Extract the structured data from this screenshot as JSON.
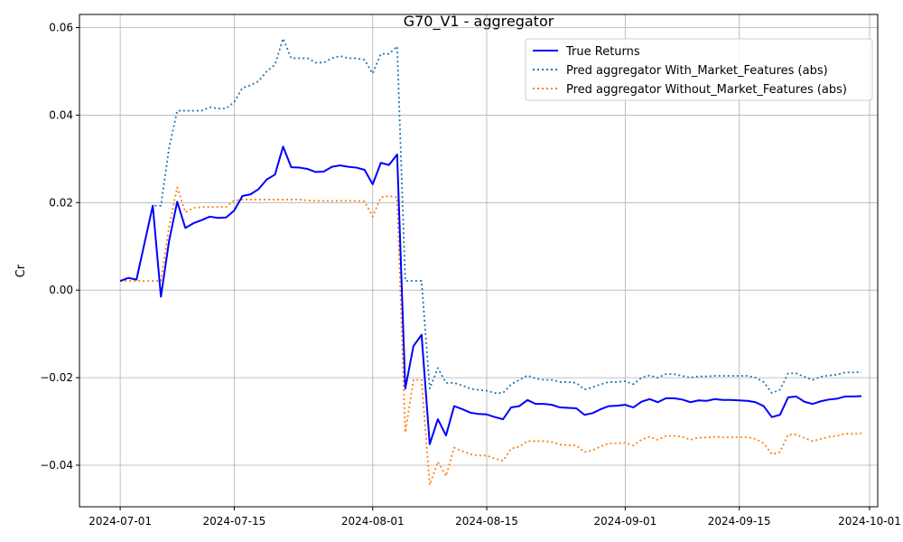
{
  "chart_data": {
    "type": "line",
    "title": "G70_V1 - aggregator",
    "xlabel": "",
    "ylabel": "Cr",
    "xlim": [
      "2024-06-26",
      "2024-10-02"
    ],
    "ylim": [
      -0.0495,
      0.063
    ],
    "grid": true,
    "legend_position": "top-right",
    "x_ticks": [
      "2024-07-01",
      "2024-07-15",
      "2024-08-01",
      "2024-08-15",
      "2024-09-01",
      "2024-09-15",
      "2024-10-01"
    ],
    "y_ticks": [
      -0.04,
      -0.02,
      0.0,
      0.02,
      0.04,
      0.06
    ],
    "y_tick_labels": [
      "−0.04",
      "−0.02",
      "0.00",
      "0.02",
      "0.04",
      "0.06"
    ],
    "x": [
      "2024-07-01",
      "2024-07-02",
      "2024-07-03",
      "2024-07-05",
      "2024-07-06",
      "2024-07-07",
      "2024-07-08",
      "2024-07-09",
      "2024-07-10",
      "2024-07-11",
      "2024-07-12",
      "2024-07-13",
      "2024-07-14",
      "2024-07-15",
      "2024-07-16",
      "2024-07-17",
      "2024-07-18",
      "2024-07-19",
      "2024-07-20",
      "2024-07-21",
      "2024-07-22",
      "2024-07-23",
      "2024-07-24",
      "2024-07-25",
      "2024-07-26",
      "2024-07-27",
      "2024-07-28",
      "2024-07-29",
      "2024-07-30",
      "2024-07-31",
      "2024-08-01",
      "2024-08-02",
      "2024-08-03",
      "2024-08-04",
      "2024-08-05",
      "2024-08-06",
      "2024-08-07",
      "2024-08-08",
      "2024-08-09",
      "2024-08-10",
      "2024-08-11",
      "2024-08-12",
      "2024-08-13",
      "2024-08-14",
      "2024-08-15",
      "2024-08-16",
      "2024-08-17",
      "2024-08-18",
      "2024-08-19",
      "2024-08-20",
      "2024-08-21",
      "2024-08-22",
      "2024-08-23",
      "2024-08-24",
      "2024-08-25",
      "2024-08-26",
      "2024-08-27",
      "2024-08-28",
      "2024-08-29",
      "2024-08-30",
      "2024-08-31",
      "2024-09-01",
      "2024-09-02",
      "2024-09-03",
      "2024-09-04",
      "2024-09-05",
      "2024-09-06",
      "2024-09-07",
      "2024-09-08",
      "2024-09-09",
      "2024-09-10",
      "2024-09-11",
      "2024-09-12",
      "2024-09-13",
      "2024-09-14",
      "2024-09-15",
      "2024-09-16",
      "2024-09-17",
      "2024-09-18",
      "2024-09-19",
      "2024-09-20",
      "2024-09-21",
      "2024-09-22",
      "2024-09-23",
      "2024-09-24",
      "2024-09-25",
      "2024-09-26",
      "2024-09-27",
      "2024-09-28",
      "2024-09-29",
      "2024-09-30"
    ],
    "series": [
      {
        "name": "True Returns",
        "color": "#0000ff",
        "style": "solid",
        "values": [
          0.0021,
          0.0028,
          0.0024,
          0.0193,
          -0.0015,
          0.0112,
          0.0202,
          0.0142,
          0.0153,
          0.016,
          0.0168,
          0.0165,
          0.0166,
          0.0182,
          0.0215,
          0.0219,
          0.0231,
          0.0253,
          0.0264,
          0.0328,
          0.0281,
          0.028,
          0.0277,
          0.027,
          0.0271,
          0.0282,
          0.0285,
          0.0282,
          0.028,
          0.0275,
          0.0242,
          0.0291,
          0.0286,
          0.031,
          -0.0225,
          -0.0128,
          -0.0102,
          -0.0352,
          -0.0295,
          -0.0332,
          -0.0265,
          -0.0272,
          -0.028,
          -0.0283,
          -0.0284,
          -0.029,
          -0.0295,
          -0.0268,
          -0.0265,
          -0.0251,
          -0.026,
          -0.026,
          -0.0262,
          -0.0268,
          -0.0269,
          -0.027,
          -0.0285,
          -0.0281,
          -0.0272,
          -0.0265,
          -0.0264,
          -0.0262,
          -0.0268,
          -0.0255,
          -0.0249,
          -0.0256,
          -0.0247,
          -0.0247,
          -0.025,
          -0.0256,
          -0.0252,
          -0.0253,
          -0.0249,
          -0.0251,
          -0.0251,
          -0.0252,
          -0.0253,
          -0.0256,
          -0.0265,
          -0.029,
          -0.0285,
          -0.0245,
          -0.0243,
          -0.0255,
          -0.026,
          -0.0254,
          -0.025,
          -0.0248,
          -0.0243,
          -0.0243,
          -0.0242
        ]
      },
      {
        "name": "Pred aggregator With_Market_Features (abs)",
        "color": "#1f77b4",
        "style": "dotted",
        "values": [
          0.0021,
          0.0028,
          0.0024,
          0.0193,
          0.0193,
          0.0325,
          0.041,
          0.041,
          0.041,
          0.041,
          0.0418,
          0.0415,
          0.0415,
          0.043,
          0.0462,
          0.0468,
          0.0478,
          0.05,
          0.0515,
          0.0575,
          0.053,
          0.053,
          0.053,
          0.052,
          0.052,
          0.053,
          0.0535,
          0.053,
          0.053,
          0.0526,
          0.0495,
          0.054,
          0.054,
          0.0557,
          0.0021,
          0.0021,
          0.0021,
          -0.0225,
          -0.0178,
          -0.0212,
          -0.0212,
          -0.0218,
          -0.0225,
          -0.0228,
          -0.023,
          -0.0235,
          -0.0235,
          -0.0215,
          -0.0205,
          -0.0195,
          -0.0202,
          -0.0205,
          -0.0205,
          -0.021,
          -0.021,
          -0.0212,
          -0.0227,
          -0.0222,
          -0.0215,
          -0.021,
          -0.021,
          -0.0208,
          -0.0215,
          -0.02,
          -0.0195,
          -0.02,
          -0.0192,
          -0.0192,
          -0.0196,
          -0.02,
          -0.0197,
          -0.0197,
          -0.0196,
          -0.0196,
          -0.0196,
          -0.0196,
          -0.0196,
          -0.02,
          -0.021,
          -0.0235,
          -0.0228,
          -0.019,
          -0.019,
          -0.0198,
          -0.0205,
          -0.0198,
          -0.0195,
          -0.0193,
          -0.0188,
          -0.0188,
          -0.0187
        ]
      },
      {
        "name": "Pred aggregator Without_Market_Features (abs)",
        "color": "#ff7f0e",
        "style": "dotted",
        "values": [
          0.0021,
          0.0021,
          0.0021,
          0.0021,
          0.0021,
          0.0145,
          0.0235,
          0.0178,
          0.0188,
          0.019,
          0.019,
          0.019,
          0.019,
          0.0205,
          0.0207,
          0.0207,
          0.0207,
          0.0207,
          0.0207,
          0.0207,
          0.0207,
          0.0207,
          0.0205,
          0.0204,
          0.0204,
          0.0204,
          0.0204,
          0.0204,
          0.0204,
          0.0203,
          0.0168,
          0.0212,
          0.0215,
          0.0212,
          -0.0325,
          -0.0205,
          -0.0205,
          -0.0445,
          -0.0392,
          -0.0425,
          -0.036,
          -0.0368,
          -0.0375,
          -0.0378,
          -0.0378,
          -0.0385,
          -0.039,
          -0.0362,
          -0.0358,
          -0.0345,
          -0.0345,
          -0.0345,
          -0.0347,
          -0.0353,
          -0.0354,
          -0.0355,
          -0.037,
          -0.0366,
          -0.0357,
          -0.035,
          -0.035,
          -0.0349,
          -0.0355,
          -0.0342,
          -0.0335,
          -0.0342,
          -0.0333,
          -0.0333,
          -0.0335,
          -0.0342,
          -0.0337,
          -0.0337,
          -0.0335,
          -0.0336,
          -0.0336,
          -0.0336,
          -0.0336,
          -0.034,
          -0.035,
          -0.0375,
          -0.037,
          -0.033,
          -0.033,
          -0.0338,
          -0.0345,
          -0.034,
          -0.0335,
          -0.0333,
          -0.0328,
          -0.0328,
          -0.0327
        ]
      }
    ]
  }
}
